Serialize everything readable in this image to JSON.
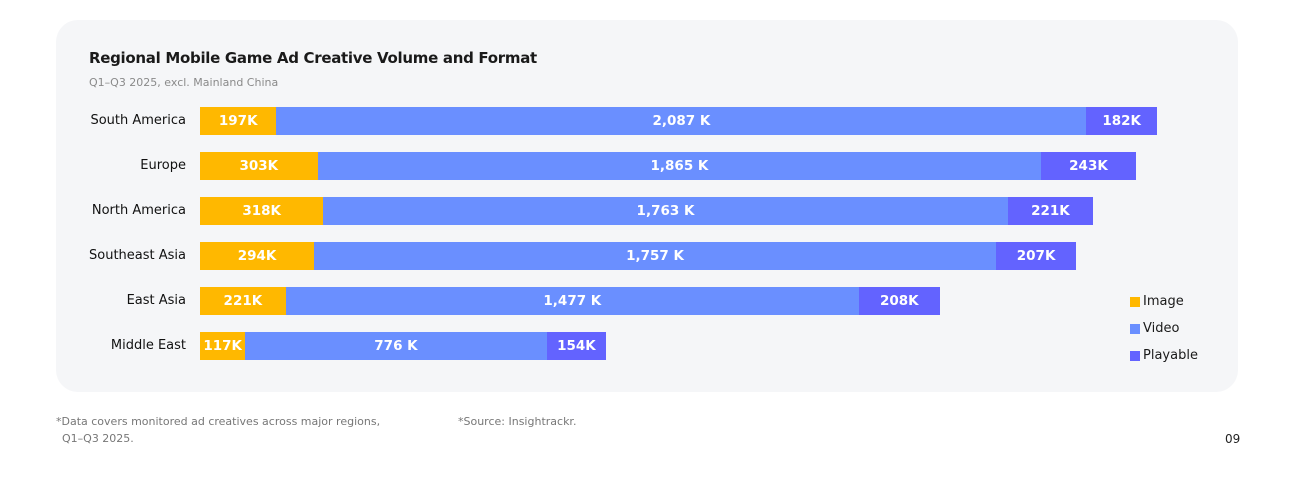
{
  "chart_data": {
    "type": "bar",
    "orientation": "horizontal",
    "stacked": true,
    "title": "Regional Mobile Game Ad Creative Volume and Format",
    "subtitle": "Q1–Q3 2025, excl. Mainland China",
    "categories": [
      "South America",
      "Europe",
      "North America",
      "Southeast Asia",
      "East Asia",
      "Middle East"
    ],
    "series": [
      {
        "name": "Image",
        "color": "#FFB800",
        "values": [
          197,
          303,
          318,
          294,
          221,
          117
        ],
        "labels": [
          "197K",
          "303K",
          "318K",
          "294K",
          "221K",
          "117K"
        ]
      },
      {
        "name": "Video",
        "color": "#6A8FFF",
        "values": [
          2087,
          1865,
          1763,
          1757,
          1477,
          776
        ],
        "labels": [
          "2,087 K",
          "1,865 K",
          "1,763 K",
          "1,757 K",
          "1,477 K",
          "776 K"
        ]
      },
      {
        "name": "Playable",
        "color": "#6363FF",
        "values": [
          182,
          243,
          221,
          207,
          208,
          154
        ],
        "labels": [
          "182K",
          "243K",
          "221K",
          "207K",
          "208K",
          "154K"
        ]
      }
    ],
    "unit": "K",
    "grid": false,
    "legend": "right"
  },
  "footer": {
    "note1": "*Data covers monitored ad creatives across major regions,",
    "note2": "Q1–Q3 2025.",
    "source": "*Source: Insightrackr.",
    "page": "09"
  }
}
